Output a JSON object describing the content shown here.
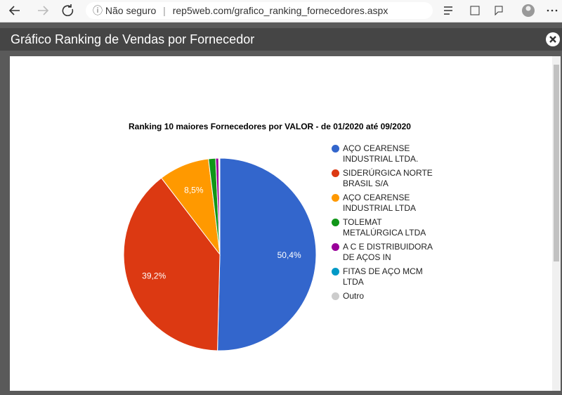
{
  "browser": {
    "security": "Não seguro",
    "url": "rep5web.com/grafico_ranking_fornecedores.aspx"
  },
  "modal": {
    "title": "Gráfico Ranking de Vendas por Fornecedor"
  },
  "chart_data": {
    "type": "pie",
    "title": "Ranking 10 maiores Fornecedores por VALOR - de 01/2020 até 09/2020",
    "categories": [
      "AÇO CEARENSE INDUSTRIAL LTDA.",
      "SIDERÚRGICA NORTE BRASIL S/A",
      "AÇO CEARENSE INDUSTRIAL LTDA",
      "TOLEMAT METALÚRGICA LTDA",
      "A C E DISTRIBUIDORA DE AÇOS IN",
      "FITAS DE AÇO MCM LTDA",
      "Outro"
    ],
    "values": [
      50.4,
      39.2,
      8.5,
      1.2,
      0.5,
      0.1,
      0.1
    ],
    "value_labels": [
      "50,4%",
      "39,2%",
      "8,5%",
      null,
      null,
      null,
      null
    ],
    "colors": [
      "#3366cc",
      "#dc3912",
      "#ff9900",
      "#109618",
      "#990099",
      "#0099c6",
      "#cccccc"
    ],
    "legend": "right"
  }
}
